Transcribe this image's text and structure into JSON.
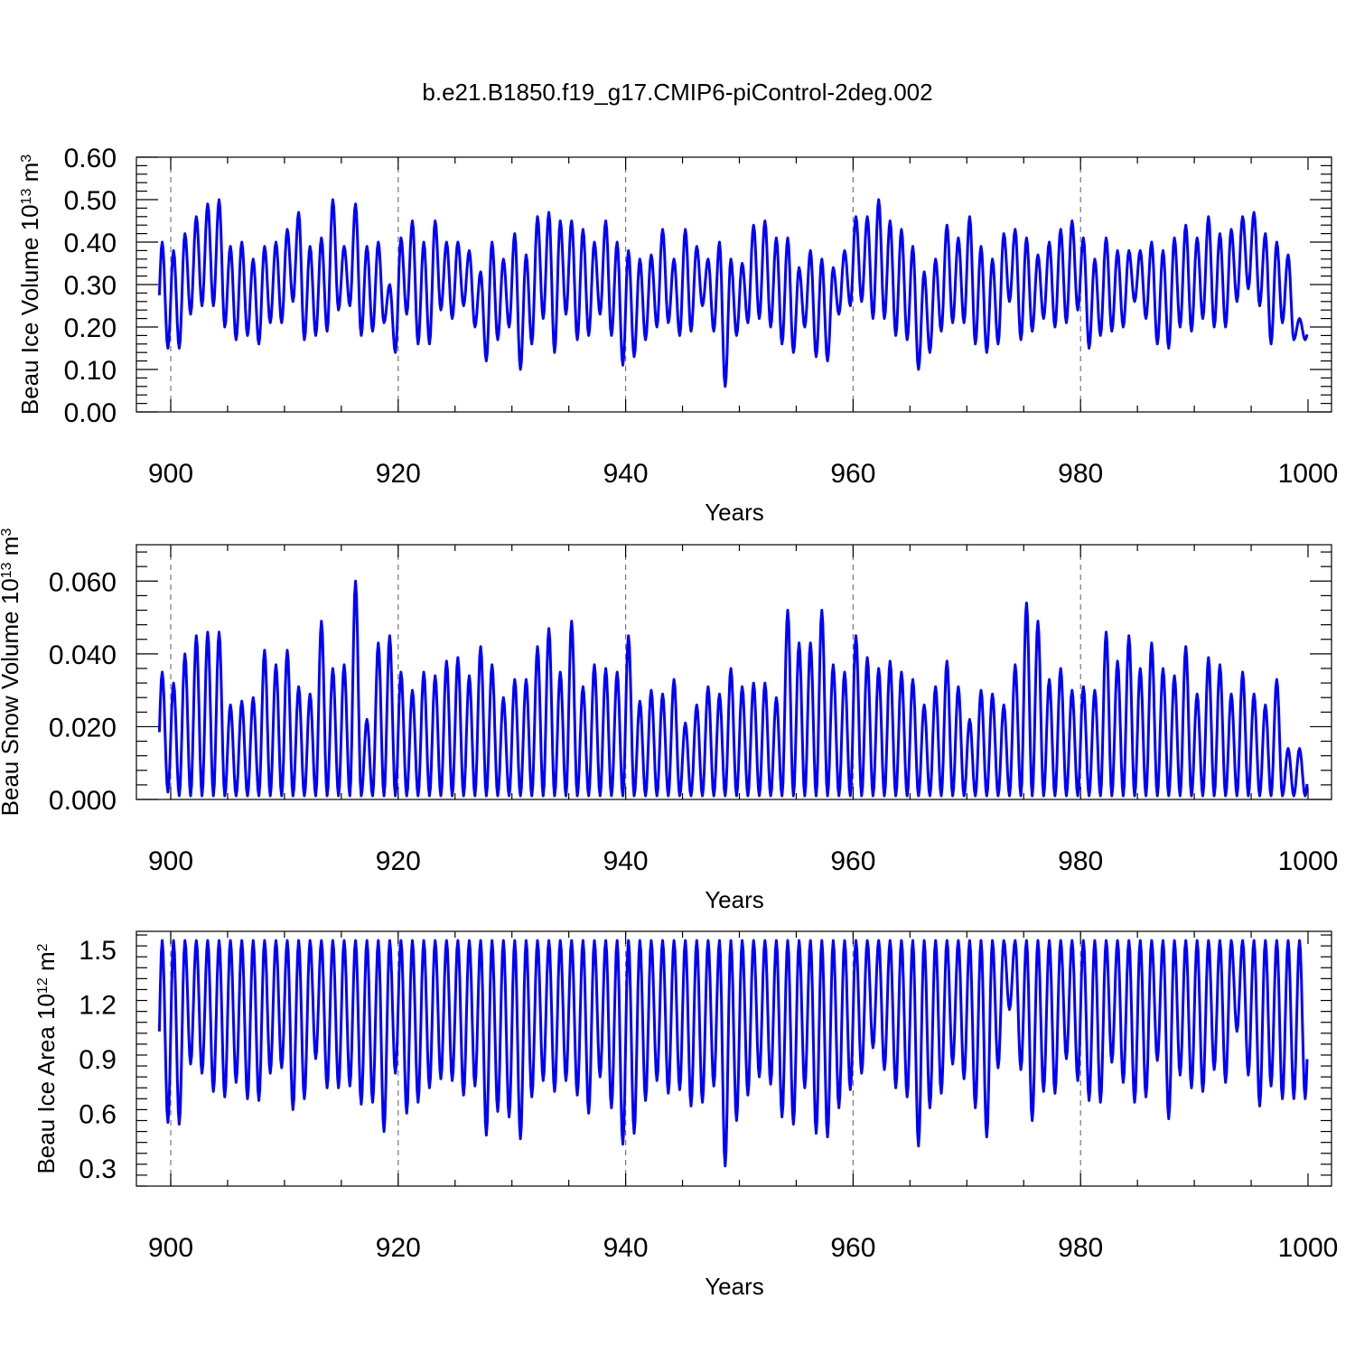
{
  "figure": {
    "title": "b.e21.B1850.f19_g17.CMIP6-piControl-2deg.002"
  },
  "chart_data": [
    {
      "type": "line",
      "ylabel_text": "Beau Ice Volume 10",
      "ylabel_exp": "13",
      "ylabel_unit": " m",
      "ylabel_unit_exp": "3",
      "xlabel": "Years",
      "xlim": [
        899,
        1000
      ],
      "ylim": [
        0,
        0.6
      ],
      "x_ticks": [
        "900",
        "920",
        "940",
        "960",
        "980",
        "1000"
      ],
      "y_ticks": [
        "0.00",
        "0.10",
        "0.20",
        "0.30",
        "0.40",
        "0.50",
        "0.60"
      ],
      "grid": "x-dashed",
      "series_color": "#0000ff",
      "series": [
        {
          "x_start": 899.0,
          "period": 1,
          "max": [
            0.4,
            0.38,
            0.42,
            0.46,
            0.49,
            0.5,
            0.39,
            0.4,
            0.36,
            0.39,
            0.4,
            0.43,
            0.47,
            0.39,
            0.41,
            0.5,
            0.39,
            0.49,
            0.39,
            0.4,
            0.3,
            0.41,
            0.45,
            0.4,
            0.45,
            0.4,
            0.4,
            0.38,
            0.33,
            0.4,
            0.36,
            0.42,
            0.37,
            0.46,
            0.47,
            0.45,
            0.45,
            0.43,
            0.4,
            0.45,
            0.4,
            0.38,
            0.36,
            0.37,
            0.43,
            0.36,
            0.43,
            0.39,
            0.36,
            0.4,
            0.36,
            0.35,
            0.44,
            0.45,
            0.41,
            0.41,
            0.34,
            0.38,
            0.36,
            0.34,
            0.38,
            0.46,
            0.46,
            0.5,
            0.45,
            0.43,
            0.39,
            0.33,
            0.36,
            0.44,
            0.41,
            0.46,
            0.39,
            0.36,
            0.42,
            0.43,
            0.41,
            0.37,
            0.4,
            0.43,
            0.45,
            0.41,
            0.36,
            0.41,
            0.38,
            0.38,
            0.38,
            0.4,
            0.38,
            0.41,
            0.44,
            0.41,
            0.46,
            0.42,
            0.43,
            0.46,
            0.47,
            0.42,
            0.4,
            0.37,
            0.22
          ],
          "min": [
            0.15,
            0.15,
            0.23,
            0.25,
            0.25,
            0.2,
            0.17,
            0.18,
            0.16,
            0.21,
            0.21,
            0.26,
            0.17,
            0.18,
            0.19,
            0.24,
            0.25,
            0.18,
            0.19,
            0.21,
            0.14,
            0.23,
            0.16,
            0.16,
            0.24,
            0.22,
            0.25,
            0.2,
            0.12,
            0.17,
            0.2,
            0.1,
            0.16,
            0.22,
            0.14,
            0.23,
            0.17,
            0.18,
            0.23,
            0.18,
            0.11,
            0.13,
            0.17,
            0.2,
            0.21,
            0.18,
            0.19,
            0.25,
            0.19,
            0.06,
            0.18,
            0.21,
            0.22,
            0.2,
            0.16,
            0.14,
            0.2,
            0.13,
            0.12,
            0.23,
            0.25,
            0.26,
            0.22,
            0.22,
            0.18,
            0.17,
            0.1,
            0.14,
            0.19,
            0.21,
            0.21,
            0.16,
            0.14,
            0.16,
            0.26,
            0.17,
            0.19,
            0.22,
            0.2,
            0.21,
            0.24,
            0.15,
            0.18,
            0.19,
            0.2,
            0.26,
            0.22,
            0.16,
            0.15,
            0.2,
            0.19,
            0.22,
            0.2,
            0.2,
            0.26,
            0.29,
            0.25,
            0.16,
            0.21,
            0.17,
            0.17
          ]
        }
      ]
    },
    {
      "type": "line",
      "ylabel_text": "Beau Snow Volume 10",
      "ylabel_exp": "13",
      "ylabel_unit": " m",
      "ylabel_unit_exp": "3",
      "xlabel": "Years",
      "xlim": [
        899,
        1000
      ],
      "ylim": [
        0,
        0.07
      ],
      "x_ticks": [
        "900",
        "920",
        "940",
        "960",
        "980",
        "1000"
      ],
      "y_ticks": [
        "0.000",
        "0.020",
        "0.040",
        "0.060"
      ],
      "grid": "x-dashed",
      "series_color": "#0000ff",
      "series": [
        {
          "x_start": 899.0,
          "period": 1,
          "max": [
            0.035,
            0.032,
            0.04,
            0.045,
            0.046,
            0.046,
            0.026,
            0.027,
            0.028,
            0.041,
            0.037,
            0.041,
            0.031,
            0.029,
            0.049,
            0.036,
            0.037,
            0.06,
            0.022,
            0.043,
            0.045,
            0.035,
            0.03,
            0.035,
            0.034,
            0.038,
            0.039,
            0.034,
            0.042,
            0.037,
            0.028,
            0.033,
            0.033,
            0.042,
            0.047,
            0.035,
            0.049,
            0.031,
            0.037,
            0.036,
            0.035,
            0.045,
            0.027,
            0.03,
            0.029,
            0.033,
            0.021,
            0.026,
            0.031,
            0.029,
            0.036,
            0.031,
            0.032,
            0.032,
            0.028,
            0.052,
            0.043,
            0.043,
            0.052,
            0.037,
            0.035,
            0.045,
            0.039,
            0.036,
            0.038,
            0.035,
            0.033,
            0.026,
            0.031,
            0.038,
            0.031,
            0.022,
            0.03,
            0.029,
            0.026,
            0.037,
            0.054,
            0.049,
            0.033,
            0.036,
            0.03,
            0.031,
            0.03,
            0.046,
            0.038,
            0.045,
            0.036,
            0.043,
            0.036,
            0.034,
            0.042,
            0.029,
            0.039,
            0.037,
            0.029,
            0.035,
            0.029,
            0.026,
            0.033,
            0.014,
            0.014
          ],
          "min": [
            0.002,
            0.001,
            0.001,
            0.001,
            0.001,
            0.001,
            0.001,
            0.001,
            0.001,
            0.001,
            0.001,
            0.001,
            0.001,
            0.001,
            0.001,
            0.001,
            0.001,
            0.001,
            0.001,
            0.001,
            0.001,
            0.001,
            0.001,
            0.001,
            0.001,
            0.001,
            0.001,
            0.001,
            0.001,
            0.001,
            0.001,
            0.001,
            0.001,
            0.001,
            0.001,
            0.001,
            0.001,
            0.001,
            0.001,
            0.001,
            0.001,
            0.001,
            0.001,
            0.001,
            0.001,
            0.001,
            0.001,
            0.001,
            0.001,
            0.001,
            0.001,
            0.001,
            0.001,
            0.001,
            0.001,
            0.001,
            0.001,
            0.001,
            0.001,
            0.001,
            0.001,
            0.001,
            0.001,
            0.001,
            0.001,
            0.001,
            0.001,
            0.001,
            0.001,
            0.001,
            0.001,
            0.001,
            0.001,
            0.001,
            0.001,
            0.001,
            0.001,
            0.001,
            0.001,
            0.001,
            0.001,
            0.001,
            0.001,
            0.001,
            0.001,
            0.001,
            0.001,
            0.001,
            0.001,
            0.001,
            0.001,
            0.001,
            0.001,
            0.001,
            0.001,
            0.001,
            0.001,
            0.001,
            0.001,
            0.001,
            0.001
          ]
        }
      ]
    },
    {
      "type": "line",
      "ylabel_text": "Beau Ice Area 10",
      "ylabel_exp": "12",
      "ylabel_unit": " m",
      "ylabel_unit_exp": "2",
      "xlabel": "Years",
      "xlim": [
        899,
        1000
      ],
      "ylim": [
        0.2,
        1.6
      ],
      "x_ticks": [
        "900",
        "920",
        "940",
        "960",
        "980",
        "1000"
      ],
      "y_ticks": [
        "0.3",
        "0.6",
        "0.9",
        "1.2",
        "1.5"
      ],
      "grid": "x-dashed",
      "series_color": "#0000ff",
      "series": [
        {
          "x_start": 899.0,
          "period": 1,
          "max": [
            1.55,
            1.55,
            1.55,
            1.55,
            1.55,
            1.55,
            1.55,
            1.55,
            1.55,
            1.55,
            1.55,
            1.55,
            1.55,
            1.55,
            1.55,
            1.55,
            1.55,
            1.55,
            1.55,
            1.55,
            1.55,
            1.55,
            1.55,
            1.55,
            1.55,
            1.55,
            1.55,
            1.55,
            1.55,
            1.55,
            1.55,
            1.55,
            1.55,
            1.55,
            1.55,
            1.55,
            1.55,
            1.55,
            1.55,
            1.55,
            1.55,
            1.55,
            1.55,
            1.55,
            1.55,
            1.55,
            1.55,
            1.55,
            1.55,
            1.55,
            1.55,
            1.55,
            1.55,
            1.55,
            1.55,
            1.55,
            1.55,
            1.55,
            1.55,
            1.55,
            1.55,
            1.55,
            1.55,
            1.55,
            1.55,
            1.55,
            1.55,
            1.55,
            1.55,
            1.55,
            1.55,
            1.55,
            1.55,
            1.55,
            1.55,
            1.55,
            1.55,
            1.55,
            1.55,
            1.55,
            1.55,
            1.55,
            1.55,
            1.55,
            1.55,
            1.55,
            1.55,
            1.55,
            1.55,
            1.55,
            1.55,
            1.55,
            1.55,
            1.55,
            1.55,
            1.55,
            1.55,
            1.55,
            1.55,
            1.55,
            1.55
          ],
          "min": [
            0.55,
            0.54,
            0.87,
            0.82,
            0.72,
            0.69,
            0.77,
            0.68,
            0.67,
            0.82,
            0.85,
            0.62,
            0.68,
            0.9,
            0.74,
            0.74,
            0.75,
            0.65,
            0.66,
            0.5,
            0.82,
            0.6,
            0.66,
            0.74,
            0.79,
            0.78,
            0.7,
            0.75,
            0.48,
            0.61,
            0.58,
            0.46,
            0.69,
            0.78,
            0.72,
            0.78,
            0.7,
            0.6,
            0.8,
            0.63,
            0.43,
            0.49,
            0.67,
            0.78,
            0.71,
            0.73,
            0.64,
            0.66,
            0.75,
            0.31,
            0.56,
            0.7,
            0.8,
            0.76,
            0.58,
            0.54,
            0.74,
            0.49,
            0.47,
            0.63,
            0.73,
            0.82,
            0.96,
            0.84,
            0.74,
            0.69,
            0.42,
            0.63,
            0.71,
            0.87,
            0.79,
            0.63,
            0.47,
            0.85,
            1.17,
            0.84,
            0.56,
            0.72,
            0.71,
            0.9,
            0.78,
            0.67,
            0.66,
            0.88,
            0.77,
            0.66,
            0.69,
            0.89,
            0.57,
            0.81,
            0.74,
            0.72,
            0.84,
            0.77,
            1.05,
            0.81,
            0.64,
            0.75,
            0.68,
            0.68,
            0.68
          ]
        }
      ]
    }
  ]
}
